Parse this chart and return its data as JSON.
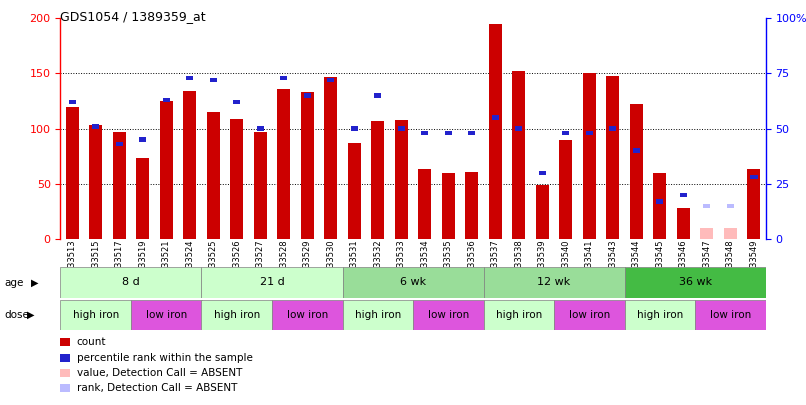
{
  "title": "GDS1054 / 1389359_at",
  "samples": [
    "GSM33513",
    "GSM33515",
    "GSM33517",
    "GSM33519",
    "GSM33521",
    "GSM33524",
    "GSM33525",
    "GSM33526",
    "GSM33527",
    "GSM33528",
    "GSM33529",
    "GSM33530",
    "GSM33531",
    "GSM33532",
    "GSM33533",
    "GSM33534",
    "GSM33535",
    "GSM33536",
    "GSM33537",
    "GSM33538",
    "GSM33539",
    "GSM33540",
    "GSM33541",
    "GSM33543",
    "GSM33544",
    "GSM33545",
    "GSM33546",
    "GSM33547",
    "GSM33548",
    "GSM33549"
  ],
  "counts": [
    120,
    103,
    97,
    73,
    125,
    134,
    115,
    109,
    97,
    136,
    133,
    147,
    87,
    107,
    108,
    63,
    60,
    61,
    195,
    152,
    49,
    90,
    150,
    148,
    122,
    60,
    28,
    10,
    10,
    63
  ],
  "ranks": [
    62,
    51,
    43,
    45,
    63,
    73,
    72,
    62,
    50,
    73,
    65,
    72,
    50,
    65,
    50,
    48,
    48,
    48,
    55,
    50,
    30,
    48,
    48,
    50,
    40,
    17,
    20,
    15,
    15,
    28
  ],
  "absent": [
    false,
    false,
    false,
    false,
    false,
    false,
    false,
    false,
    false,
    false,
    false,
    false,
    false,
    false,
    false,
    false,
    false,
    false,
    false,
    false,
    false,
    false,
    false,
    false,
    false,
    false,
    false,
    true,
    true,
    false
  ],
  "ages": [
    {
      "label": "8 d",
      "start": 0,
      "end": 6,
      "color": "#ccffcc"
    },
    {
      "label": "21 d",
      "start": 6,
      "end": 12,
      "color": "#ccffcc"
    },
    {
      "label": "6 wk",
      "start": 12,
      "end": 18,
      "color": "#99dd99"
    },
    {
      "label": "12 wk",
      "start": 18,
      "end": 24,
      "color": "#99dd99"
    },
    {
      "label": "36 wk",
      "start": 24,
      "end": 30,
      "color": "#44bb44"
    }
  ],
  "doses": [
    {
      "label": "high iron",
      "start": 0,
      "end": 3,
      "color": "#ccffcc"
    },
    {
      "label": "low iron",
      "start": 3,
      "end": 6,
      "color": "#dd55dd"
    },
    {
      "label": "high iron",
      "start": 6,
      "end": 9,
      "color": "#ccffcc"
    },
    {
      "label": "low iron",
      "start": 9,
      "end": 12,
      "color": "#dd55dd"
    },
    {
      "label": "high iron",
      "start": 12,
      "end": 15,
      "color": "#ccffcc"
    },
    {
      "label": "low iron",
      "start": 15,
      "end": 18,
      "color": "#dd55dd"
    },
    {
      "label": "high iron",
      "start": 18,
      "end": 21,
      "color": "#ccffcc"
    },
    {
      "label": "low iron",
      "start": 21,
      "end": 24,
      "color": "#dd55dd"
    },
    {
      "label": "high iron",
      "start": 24,
      "end": 27,
      "color": "#ccffcc"
    },
    {
      "label": "low iron",
      "start": 27,
      "end": 30,
      "color": "#dd55dd"
    }
  ],
  "bar_color": "#cc0000",
  "rank_color": "#2222cc",
  "absent_bar_color": "#ffbbbb",
  "absent_rank_color": "#bbbbff",
  "ylim_left": [
    0,
    200
  ],
  "ylim_right": [
    0,
    100
  ],
  "yticks_left": [
    0,
    50,
    100,
    150,
    200
  ],
  "yticks_right": [
    0,
    25,
    50,
    75,
    100
  ],
  "ytick_labels_right": [
    "0",
    "25",
    "50",
    "75",
    "100%"
  ]
}
